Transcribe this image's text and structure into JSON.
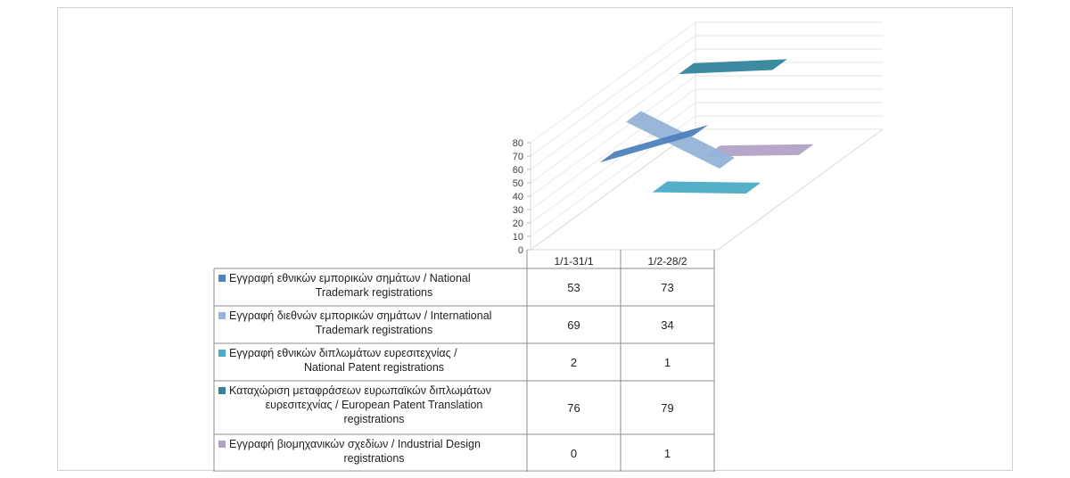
{
  "chart_data": {
    "type": "line",
    "variant": "3d-line-with-data-table",
    "categories": [
      "1/1-31/1",
      "1/2-28/2"
    ],
    "ylim": [
      0,
      80
    ],
    "yticks": [
      0,
      10,
      20,
      30,
      40,
      50,
      60,
      70,
      80
    ],
    "grid": true,
    "series": [
      {
        "name_lines": [
          "Εγγραφή εθνικών εμπορικών σημάτων / National",
          "Trademark registrations"
        ],
        "values": [
          53,
          73
        ],
        "color": "#4f81bd",
        "value_labels": [
          "53",
          "73"
        ]
      },
      {
        "name_lines": [
          "Εγγραφή διεθνών εμπορικών σημάτων / International",
          "Trademark registrations"
        ],
        "values": [
          69,
          34
        ],
        "color": "#95b3d7",
        "value_labels": [
          "69",
          "34"
        ]
      },
      {
        "name_lines": [
          "Εγγραφή εθνικών διπλωμάτων ευρεσιτεχνίας /",
          "National Patent registrations"
        ],
        "values": [
          2,
          1
        ],
        "color": "#4bacc6",
        "value_labels": [
          "2",
          "1"
        ]
      },
      {
        "name_lines": [
          "Καταχώριση μεταφράσεων ευρωπαϊκών διπλωμάτων",
          "ευρεσιτεχνίας / European Patent Translation",
          "registrations"
        ],
        "values": [
          76,
          79
        ],
        "color": "#31859c",
        "value_labels": [
          "76",
          "79"
        ]
      },
      {
        "name_lines": [
          "Εγγραφή βιομηχανικών σχεδίων / Industrial Design",
          "registrations"
        ],
        "values": [
          0,
          1
        ],
        "color": "#b2a1c7",
        "value_labels": [
          "0",
          "1"
        ]
      }
    ]
  }
}
